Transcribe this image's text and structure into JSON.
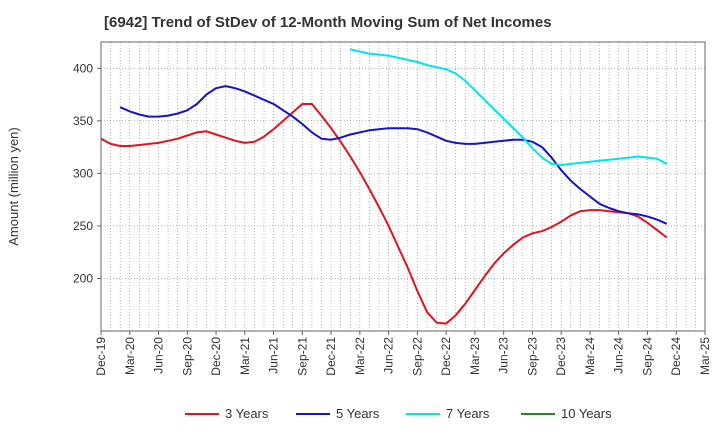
{
  "chart_data": {
    "type": "line",
    "title": "[6942]  Trend of StDev of 12-Month Moving Sum of Net Incomes",
    "xlabel": "",
    "ylabel": "Amount (million yen)",
    "x_ticks": [
      "Dec-19",
      "Mar-20",
      "Jun-20",
      "Sep-20",
      "Dec-20",
      "Mar-21",
      "Jun-21",
      "Sep-21",
      "Dec-21",
      "Mar-22",
      "Jun-22",
      "Sep-22",
      "Dec-22",
      "Mar-23",
      "Jun-23",
      "Sep-23",
      "Dec-23",
      "Mar-24",
      "Jun-24",
      "Sep-24",
      "Dec-24",
      "Mar-25"
    ],
    "y_ticks": [
      200,
      250,
      300,
      350,
      400
    ],
    "ylim": [
      150,
      425
    ],
    "xlim": [
      "2019-12",
      "2025-03"
    ],
    "grid": true,
    "legend_position": "bottom",
    "series": [
      {
        "name": "3 Years",
        "color": "#e0141e",
        "points": [
          [
            "2019-12",
            333
          ],
          [
            "2020-01",
            328
          ],
          [
            "2020-02",
            326
          ],
          [
            "2020-03",
            326
          ],
          [
            "2020-04",
            327
          ],
          [
            "2020-05",
            328
          ],
          [
            "2020-06",
            329
          ],
          [
            "2020-07",
            331
          ],
          [
            "2020-08",
            333
          ],
          [
            "2020-09",
            336
          ],
          [
            "2020-10",
            339
          ],
          [
            "2020-11",
            340
          ],
          [
            "2020-12",
            337
          ],
          [
            "2021-01",
            334
          ],
          [
            "2021-02",
            331
          ],
          [
            "2021-03",
            329
          ],
          [
            "2021-04",
            330
          ],
          [
            "2021-05",
            335
          ],
          [
            "2021-06",
            342
          ],
          [
            "2021-07",
            350
          ],
          [
            "2021-08",
            358
          ],
          [
            "2021-09",
            366
          ],
          [
            "2021-10",
            366
          ],
          [
            "2021-11",
            355
          ],
          [
            "2021-12",
            343
          ],
          [
            "2022-01",
            330
          ],
          [
            "2022-02",
            316
          ],
          [
            "2022-03",
            301
          ],
          [
            "2022-04",
            285
          ],
          [
            "2022-05",
            268
          ],
          [
            "2022-06",
            250
          ],
          [
            "2022-07",
            230
          ],
          [
            "2022-08",
            210
          ],
          [
            "2022-09",
            188
          ],
          [
            "2022-10",
            168
          ],
          [
            "2022-11",
            158
          ],
          [
            "2022-12",
            157
          ],
          [
            "2023-01",
            165
          ],
          [
            "2023-02",
            176
          ],
          [
            "2023-03",
            189
          ],
          [
            "2023-04",
            202
          ],
          [
            "2023-05",
            214
          ],
          [
            "2023-06",
            224
          ],
          [
            "2023-07",
            232
          ],
          [
            "2023-08",
            239
          ],
          [
            "2023-09",
            243
          ],
          [
            "2023-10",
            245
          ],
          [
            "2023-11",
            249
          ],
          [
            "2023-12",
            254
          ],
          [
            "2024-01",
            260
          ],
          [
            "2024-02",
            264
          ],
          [
            "2024-03",
            265
          ],
          [
            "2024-04",
            265
          ],
          [
            "2024-05",
            264
          ],
          [
            "2024-06",
            263
          ],
          [
            "2024-07",
            262
          ],
          [
            "2024-08",
            259
          ],
          [
            "2024-09",
            253
          ],
          [
            "2024-10",
            246
          ],
          [
            "2024-11",
            239
          ]
        ]
      },
      {
        "name": "5 Years",
        "color": "#1414c8",
        "points": [
          [
            "2020-02",
            363
          ],
          [
            "2020-03",
            359
          ],
          [
            "2020-04",
            356
          ],
          [
            "2020-05",
            354
          ],
          [
            "2020-06",
            354
          ],
          [
            "2020-07",
            355
          ],
          [
            "2020-08",
            357
          ],
          [
            "2020-09",
            360
          ],
          [
            "2020-10",
            366
          ],
          [
            "2020-11",
            375
          ],
          [
            "2020-12",
            381
          ],
          [
            "2021-01",
            383
          ],
          [
            "2021-02",
            381
          ],
          [
            "2021-03",
            378
          ],
          [
            "2021-04",
            374
          ],
          [
            "2021-05",
            370
          ],
          [
            "2021-06",
            366
          ],
          [
            "2021-07",
            360
          ],
          [
            "2021-08",
            354
          ],
          [
            "2021-09",
            347
          ],
          [
            "2021-10",
            339
          ],
          [
            "2021-11",
            333
          ],
          [
            "2021-12",
            332
          ],
          [
            "2022-01",
            334
          ],
          [
            "2022-02",
            337
          ],
          [
            "2022-03",
            339
          ],
          [
            "2022-04",
            341
          ],
          [
            "2022-05",
            342
          ],
          [
            "2022-06",
            343
          ],
          [
            "2022-07",
            343
          ],
          [
            "2022-08",
            343
          ],
          [
            "2022-09",
            342
          ],
          [
            "2022-10",
            339
          ],
          [
            "2022-11",
            335
          ],
          [
            "2022-12",
            331
          ],
          [
            "2023-01",
            329
          ],
          [
            "2023-02",
            328
          ],
          [
            "2023-03",
            328
          ],
          [
            "2023-04",
            329
          ],
          [
            "2023-05",
            330
          ],
          [
            "2023-06",
            331
          ],
          [
            "2023-07",
            332
          ],
          [
            "2023-08",
            332
          ],
          [
            "2023-09",
            330
          ],
          [
            "2023-10",
            325
          ],
          [
            "2023-11",
            315
          ],
          [
            "2023-12",
            303
          ],
          [
            "2024-01",
            293
          ],
          [
            "2024-02",
            285
          ],
          [
            "2024-03",
            278
          ],
          [
            "2024-04",
            271
          ],
          [
            "2024-05",
            267
          ],
          [
            "2024-06",
            264
          ],
          [
            "2024-07",
            262
          ],
          [
            "2024-08",
            261
          ],
          [
            "2024-09",
            259
          ],
          [
            "2024-10",
            256
          ],
          [
            "2024-11",
            252
          ]
        ]
      },
      {
        "name": "7 Years",
        "color": "#00e5e5",
        "points": [
          [
            "2022-02",
            418
          ],
          [
            "2022-03",
            416
          ],
          [
            "2022-04",
            414
          ],
          [
            "2022-05",
            413
          ],
          [
            "2022-06",
            412
          ],
          [
            "2022-07",
            410
          ],
          [
            "2022-08",
            408
          ],
          [
            "2022-09",
            406
          ],
          [
            "2022-10",
            403
          ],
          [
            "2022-11",
            401
          ],
          [
            "2022-12",
            399
          ],
          [
            "2023-01",
            395
          ],
          [
            "2023-02",
            388
          ],
          [
            "2023-03",
            379
          ],
          [
            "2023-04",
            370
          ],
          [
            "2023-05",
            361
          ],
          [
            "2023-06",
            352
          ],
          [
            "2023-07",
            343
          ],
          [
            "2023-08",
            334
          ],
          [
            "2023-09",
            324
          ],
          [
            "2023-10",
            315
          ],
          [
            "2023-11",
            309
          ],
          [
            "2023-12",
            308
          ],
          [
            "2024-01",
            309
          ],
          [
            "2024-02",
            310
          ],
          [
            "2024-03",
            311
          ],
          [
            "2024-04",
            312
          ],
          [
            "2024-05",
            313
          ],
          [
            "2024-06",
            314
          ],
          [
            "2024-07",
            315
          ],
          [
            "2024-08",
            316
          ],
          [
            "2024-09",
            315
          ],
          [
            "2024-10",
            314
          ],
          [
            "2024-11",
            309
          ]
        ]
      },
      {
        "name": "10 Years",
        "color": "#228b22",
        "points": []
      }
    ]
  }
}
